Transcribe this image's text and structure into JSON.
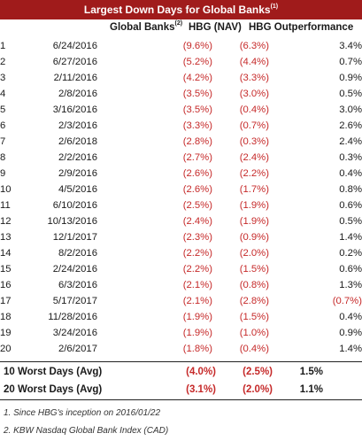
{
  "title": {
    "text": "Largest Down Days for Global Banks",
    "footnote_ref": "(1)"
  },
  "columns": {
    "global_banks": "Global Banks",
    "global_banks_ref": "(2)",
    "hbg_nav": "HBG (NAV)",
    "hbg_out": "HBG Outperformance"
  },
  "rows": [
    {
      "rank": "1",
      "date": "6/24/2016",
      "gb": "(9.6%)",
      "hbg": "(6.3%)",
      "out": "3.4%"
    },
    {
      "rank": "2",
      "date": "6/27/2016",
      "gb": "(5.2%)",
      "hbg": "(4.4%)",
      "out": "0.7%"
    },
    {
      "rank": "3",
      "date": "2/11/2016",
      "gb": "(4.2%)",
      "hbg": "(3.3%)",
      "out": "0.9%"
    },
    {
      "rank": "4",
      "date": "2/8/2016",
      "gb": "(3.5%)",
      "hbg": "(3.0%)",
      "out": "0.5%"
    },
    {
      "rank": "5",
      "date": "3/16/2016",
      "gb": "(3.5%)",
      "hbg": "(0.4%)",
      "out": "3.0%"
    },
    {
      "rank": "6",
      "date": "2/3/2016",
      "gb": "(3.3%)",
      "hbg": "(0.7%)",
      "out": "2.6%"
    },
    {
      "rank": "7",
      "date": "2/6/2018",
      "gb": "(2.8%)",
      "hbg": "(0.3%)",
      "out": "2.4%"
    },
    {
      "rank": "8",
      "date": "2/2/2016",
      "gb": "(2.7%)",
      "hbg": "(2.4%)",
      "out": "0.3%"
    },
    {
      "rank": "9",
      "date": "2/9/2016",
      "gb": "(2.6%)",
      "hbg": "(2.2%)",
      "out": "0.4%"
    },
    {
      "rank": "10",
      "date": "4/5/2016",
      "gb": "(2.6%)",
      "hbg": "(1.7%)",
      "out": "0.8%"
    },
    {
      "rank": "11",
      "date": "6/10/2016",
      "gb": "(2.5%)",
      "hbg": "(1.9%)",
      "out": "0.6%"
    },
    {
      "rank": "12",
      "date": "10/13/2016",
      "gb": "(2.4%)",
      "hbg": "(1.9%)",
      "out": "0.5%"
    },
    {
      "rank": "13",
      "date": "12/1/2017",
      "gb": "(2.3%)",
      "hbg": "(0.9%)",
      "out": "1.4%"
    },
    {
      "rank": "14",
      "date": "8/2/2016",
      "gb": "(2.2%)",
      "hbg": "(2.0%)",
      "out": "0.2%"
    },
    {
      "rank": "15",
      "date": "2/24/2016",
      "gb": "(2.2%)",
      "hbg": "(1.5%)",
      "out": "0.6%"
    },
    {
      "rank": "16",
      "date": "6/3/2016",
      "gb": "(2.1%)",
      "hbg": "(0.8%)",
      "out": "1.3%"
    },
    {
      "rank": "17",
      "date": "5/17/2017",
      "gb": "(2.1%)",
      "hbg": "(2.8%)",
      "out": "(0.7%)"
    },
    {
      "rank": "18",
      "date": "11/28/2016",
      "gb": "(1.9%)",
      "hbg": "(1.5%)",
      "out": "0.4%"
    },
    {
      "rank": "19",
      "date": "3/24/2016",
      "gb": "(1.9%)",
      "hbg": "(1.0%)",
      "out": "0.9%"
    },
    {
      "rank": "20",
      "date": "2/6/2017",
      "gb": "(1.8%)",
      "hbg": "(0.4%)",
      "out": "1.4%"
    }
  ],
  "summary": [
    {
      "label": "10 Worst Days (Avg)",
      "gb": "(4.0%)",
      "hbg": "(2.5%)",
      "out": "1.5%"
    },
    {
      "label": "20 Worst Days (Avg)",
      "gb": "(3.1%)",
      "hbg": "(2.0%)",
      "out": "1.1%"
    }
  ],
  "notes": [
    "1. Since HBG's inception on 2016/01/22",
    "2. KBW Nasdaq Global Bank Index (CAD)"
  ],
  "colors": {
    "header_bg": "#a01b1b",
    "negative": "#c62a2a",
    "text": "#1a1a1a"
  }
}
